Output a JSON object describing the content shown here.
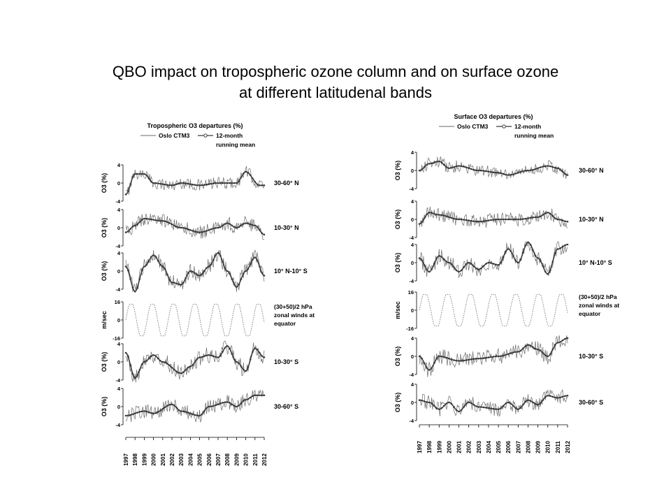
{
  "title": {
    "line1": "QBO impact on tropospheric ozone column and on surface ozone",
    "line2": "at different latitudenal bands"
  },
  "years": [
    "1997",
    "1998",
    "1999",
    "2000",
    "2001",
    "2002",
    "2003",
    "2004",
    "2005",
    "2006",
    "2007",
    "2008",
    "2009",
    "2010",
    "2011",
    "2012"
  ],
  "legend": {
    "model_label": "Oslo CTM3",
    "mean_label_1": "12-month",
    "mean_label_2": "running mean"
  },
  "panel_labels": {
    "n60": "30-60° N",
    "n30": "10-30° N",
    "eq": "10° N-10° S",
    "wind1": "(30+50)/2 hPa",
    "wind2": "zonal winds at",
    "wind3": "equator",
    "s30": "10-30° S",
    "s60": "30-60° S"
  },
  "y_labels": {
    "o3": "O3 (%)",
    "wind": "m/sec"
  },
  "colors": {
    "model": "#6a6a6a",
    "running_mean": "#3a3a3a",
    "wind": "#777777",
    "axis": "#000000"
  },
  "chart_data": [
    {
      "type": "line",
      "title": "Tropospheric O3 departures (%)",
      "x_range": [
        1997,
        2012
      ],
      "panels": [
        {
          "label_key": "n60",
          "ylabel_key": "o3",
          "ylim": [
            -4,
            4
          ],
          "yticks": [
            4,
            0,
            -4
          ],
          "mean_anchors": [
            [
              1997,
              -2.5
            ],
            [
              1998,
              2
            ],
            [
              1999,
              2
            ],
            [
              2000,
              0
            ],
            [
              2002,
              -0.5
            ],
            [
              2003,
              0
            ],
            [
              2005,
              -0.5
            ],
            [
              2007,
              0
            ],
            [
              2009,
              0
            ],
            [
              2010,
              2.5
            ],
            [
              2011.5,
              -0.5
            ],
            [
              2012,
              -0.5
            ]
          ],
          "noise": 1.3
        },
        {
          "label_key": "n30",
          "ylabel_key": "o3",
          "ylim": [
            -4,
            4
          ],
          "yticks": [
            4,
            0,
            -4
          ],
          "mean_anchors": [
            [
              1997,
              -1
            ],
            [
              1998,
              0.5
            ],
            [
              1999,
              2
            ],
            [
              2001,
              1.5
            ],
            [
              2003,
              0
            ],
            [
              2005,
              -1
            ],
            [
              2007,
              0
            ],
            [
              2008,
              1
            ],
            [
              2009,
              0
            ],
            [
              2010,
              1
            ],
            [
              2011,
              0.5
            ],
            [
              2012,
              -1.5
            ]
          ],
          "noise": 1.5
        },
        {
          "label_key": "eq",
          "ylabel_key": "o3",
          "ylim": [
            -4,
            4
          ],
          "yticks": [
            4,
            0,
            -4
          ],
          "mean_anchors": [
            [
              1997,
              1
            ],
            [
              1998,
              -4.5
            ],
            [
              1999,
              1
            ],
            [
              2000,
              3.5
            ],
            [
              2001,
              1
            ],
            [
              2002,
              -2.5
            ],
            [
              2003,
              -3
            ],
            [
              2004,
              0
            ],
            [
              2005,
              -1
            ],
            [
              2006,
              1
            ],
            [
              2007,
              4
            ],
            [
              2008,
              0
            ],
            [
              2009,
              -3.5
            ],
            [
              2010,
              0
            ],
            [
              2011,
              3
            ],
            [
              2012,
              -1
            ]
          ],
          "noise": 1.8
        },
        {
          "label_key": "wind",
          "ylabel_key": "wind",
          "is_wind": true,
          "ylim": [
            -16,
            16
          ],
          "yticks": [
            16,
            0,
            -16
          ],
          "wind_period_years": 2.3,
          "wind_amplitude": 14
        },
        {
          "label_key": "s30",
          "ylabel_key": "o3",
          "ylim": [
            -4,
            4
          ],
          "yticks": [
            4,
            0,
            -4
          ],
          "mean_anchors": [
            [
              1997,
              2
            ],
            [
              1998,
              -3.5
            ],
            [
              1999,
              0
            ],
            [
              2000,
              1.5
            ],
            [
              2001,
              0
            ],
            [
              2003,
              -2.5
            ],
            [
              2004,
              -1
            ],
            [
              2005,
              1
            ],
            [
              2006,
              1.5
            ],
            [
              2007,
              1
            ],
            [
              2008,
              3.5
            ],
            [
              2009,
              0
            ],
            [
              2010,
              -2
            ],
            [
              2011,
              3
            ],
            [
              2012,
              1
            ]
          ],
          "noise": 1.8
        },
        {
          "label_key": "s60",
          "ylabel_key": "o3",
          "ylim": [
            -4,
            4
          ],
          "yticks": [
            4,
            0,
            -4
          ],
          "mean_anchors": [
            [
              1997,
              -2
            ],
            [
              1999,
              -1
            ],
            [
              2000,
              -1.5
            ],
            [
              2002,
              0.5
            ],
            [
              2003,
              -1
            ],
            [
              2005,
              -2
            ],
            [
              2006,
              0
            ],
            [
              2008,
              1
            ],
            [
              2009,
              0
            ],
            [
              2010,
              1.5
            ],
            [
              2011,
              2.5
            ],
            [
              2012,
              2.5
            ]
          ],
          "noise": 1.6
        }
      ]
    },
    {
      "type": "line",
      "title": "Surface O3 departures (%)",
      "x_range": [
        1997,
        2012
      ],
      "panels": [
        {
          "label_key": "n60",
          "ylabel_key": "o3",
          "ylim": [
            -4,
            4
          ],
          "yticks": [
            4,
            0,
            -4
          ],
          "mean_anchors": [
            [
              1997,
              0
            ],
            [
              1998,
              1.5
            ],
            [
              1999,
              2
            ],
            [
              2000,
              0.5
            ],
            [
              2001,
              1
            ],
            [
              2003,
              0
            ],
            [
              2005,
              -0.5
            ],
            [
              2006,
              -1
            ],
            [
              2008,
              0
            ],
            [
              2010,
              1
            ],
            [
              2011,
              0.5
            ],
            [
              2012,
              -1
            ]
          ],
          "noise": 1.3
        },
        {
          "label_key": "n30",
          "ylabel_key": "o3",
          "ylim": [
            -4,
            4
          ],
          "yticks": [
            4,
            0,
            -4
          ],
          "mean_anchors": [
            [
              1997,
              -1
            ],
            [
              1998,
              1.5
            ],
            [
              1999,
              1
            ],
            [
              2001,
              0
            ],
            [
              2003,
              -0.5
            ],
            [
              2005,
              0
            ],
            [
              2007,
              0
            ],
            [
              2009,
              0.5
            ],
            [
              2010,
              1.5
            ],
            [
              2011,
              0
            ],
            [
              2012,
              -0.5
            ]
          ],
          "noise": 1.5
        },
        {
          "label_key": "eq",
          "ylabel_key": "o3",
          "ylim": [
            -4,
            4
          ],
          "yticks": [
            4,
            0,
            -4
          ],
          "mean_anchors": [
            [
              1997,
              1
            ],
            [
              1998,
              -2
            ],
            [
              1999,
              1.5
            ],
            [
              2000,
              0
            ],
            [
              2001,
              -2
            ],
            [
              2002,
              0
            ],
            [
              2003,
              -1.5
            ],
            [
              2004,
              0
            ],
            [
              2005,
              -0.5
            ],
            [
              2006,
              3
            ],
            [
              2007,
              0
            ],
            [
              2008,
              4.5
            ],
            [
              2009,
              1
            ],
            [
              2010,
              -2.5
            ],
            [
              2011,
              3
            ],
            [
              2012,
              4
            ]
          ],
          "noise": 1.8
        },
        {
          "label_key": "wind",
          "ylabel_key": "wind",
          "is_wind": true,
          "ylim": [
            -16,
            16
          ],
          "yticks": [
            16,
            0,
            -16
          ],
          "wind_period_years": 2.3,
          "wind_amplitude": 14
        },
        {
          "label_key": "s30",
          "ylabel_key": "o3",
          "ylim": [
            -4,
            4
          ],
          "yticks": [
            4,
            0,
            -4
          ],
          "mean_anchors": [
            [
              1997,
              0
            ],
            [
              1998,
              -3
            ],
            [
              1999,
              0
            ],
            [
              2001,
              -1
            ],
            [
              2003,
              -0.5
            ],
            [
              2005,
              0
            ],
            [
              2007,
              1
            ],
            [
              2008,
              2.5
            ],
            [
              2009,
              1.5
            ],
            [
              2010,
              0
            ],
            [
              2011,
              3
            ],
            [
              2012,
              4
            ]
          ],
          "noise": 1.8
        },
        {
          "label_key": "s60",
          "ylabel_key": "o3",
          "ylim": [
            -4,
            4
          ],
          "yticks": [
            4,
            0,
            -4
          ],
          "mean_anchors": [
            [
              1997,
              0.5
            ],
            [
              1998,
              0
            ],
            [
              1999,
              -1.5
            ],
            [
              2000,
              0
            ],
            [
              2001,
              -2
            ],
            [
              2002,
              0
            ],
            [
              2003,
              -1
            ],
            [
              2005,
              -1.5
            ],
            [
              2006,
              0
            ],
            [
              2007,
              -1.5
            ],
            [
              2008,
              0.5
            ],
            [
              2009,
              -0.5
            ],
            [
              2010,
              1.5
            ],
            [
              2011,
              1
            ],
            [
              2012,
              1.5
            ]
          ],
          "noise": 1.6
        }
      ]
    }
  ]
}
